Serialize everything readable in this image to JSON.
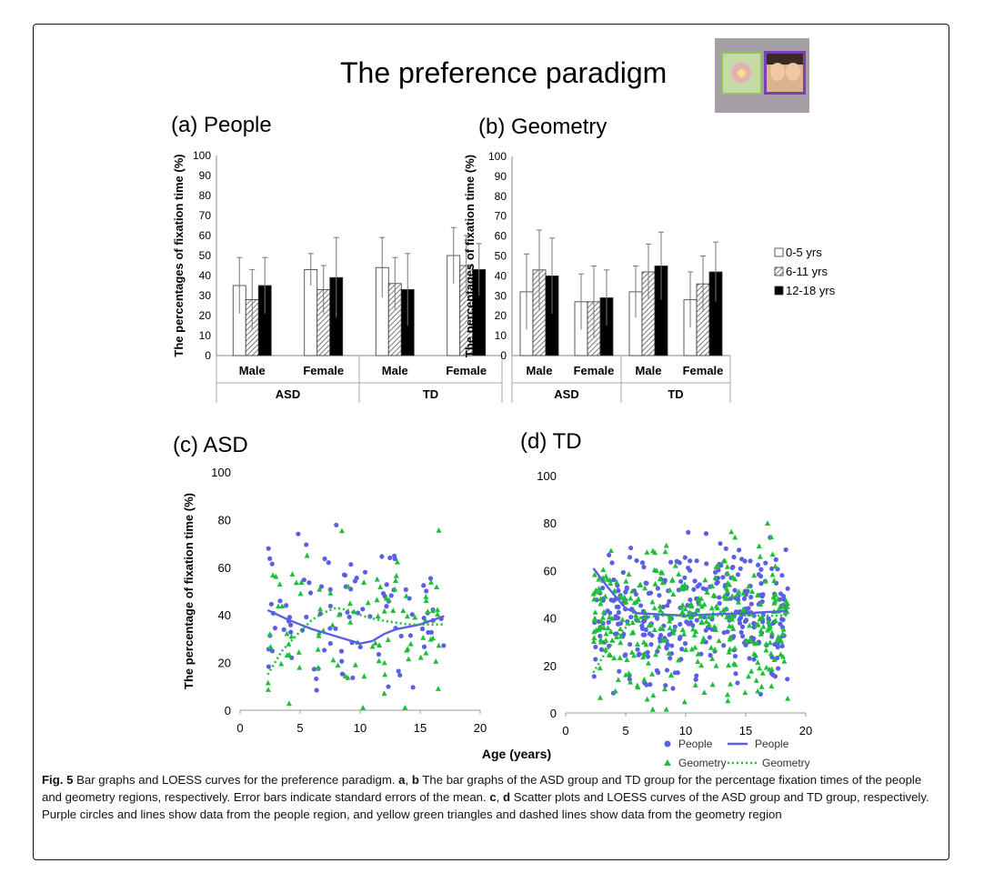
{
  "figure": {
    "main_title": "The preference paradigm",
    "caption": {
      "fig_label": "Fig. 5",
      "lead": " Bar graphs and LOESS curves for the preference paradigm. ",
      "ab_label": "a",
      "ab_sep": ", ",
      "b_label": "b",
      "ab_text": " The bar graphs of the ASD group and TD group for the percentage fixation times of the people and geometry regions, respectively. Error bars indicate standard errors of the mean. ",
      "c_label": "c",
      "cd_sep": ", ",
      "d_label": "d",
      "cd_text": " Scatter plots and LOESS curves of the ASD group and TD group, respectively. Purple circles and lines show data from the people region, and yellow green triangles and dashed lines show data from the geometry region"
    }
  },
  "chart_data": [
    {
      "panel": "(a) People",
      "type": "bar",
      "ylabel": "The percentages of fixation time (%)",
      "ylim": [
        0,
        100
      ],
      "yticks": [
        "0",
        "10",
        "20",
        "30",
        "40",
        "50",
        "60",
        "70",
        "80",
        "90",
        "100"
      ],
      "categories": [
        "Male",
        "Female",
        "Male",
        "Female"
      ],
      "groups": [
        "ASD",
        "TD"
      ],
      "series": [
        {
          "name": "0-5 yrs",
          "values": [
            35,
            43,
            44,
            50
          ],
          "err": [
            14,
            8,
            15,
            14
          ],
          "color": "#ffffff"
        },
        {
          "name": "6-11 yrs",
          "values": [
            28,
            33,
            36,
            45
          ],
          "err": [
            15,
            12,
            13,
            15
          ],
          "color": "hatched"
        },
        {
          "name": "12-18 yrs",
          "values": [
            35,
            39,
            33,
            43
          ],
          "err": [
            14,
            20,
            18,
            13
          ],
          "color": "#000000"
        }
      ]
    },
    {
      "panel": "(b) Geometry",
      "type": "bar",
      "ylabel": "The percentages of fixation time (%)",
      "ylim": [
        0,
        100
      ],
      "yticks": [
        "0",
        "10",
        "20",
        "30",
        "40",
        "50",
        "60",
        "70",
        "80",
        "90",
        "100"
      ],
      "categories": [
        "Male",
        "Female",
        "Male",
        "Female"
      ],
      "groups": [
        "ASD",
        "TD"
      ],
      "legend": [
        "0-5 yrs",
        "6-11 yrs",
        "12-18 yrs"
      ],
      "series": [
        {
          "name": "0-5 yrs",
          "values": [
            32,
            27,
            32,
            28
          ],
          "err": [
            19,
            14,
            13,
            14
          ],
          "color": "#ffffff"
        },
        {
          "name": "6-11 yrs",
          "values": [
            43,
            27,
            42,
            36
          ],
          "err": [
            20,
            18,
            14,
            14
          ],
          "color": "hatched"
        },
        {
          "name": "12-18 yrs",
          "values": [
            40,
            29,
            45,
            42
          ],
          "err": [
            19,
            14,
            17,
            15
          ],
          "color": "#000000"
        }
      ]
    },
    {
      "panel": "(c) ASD",
      "type": "scatter",
      "ylabel": "The percentage of fixation time (%)",
      "xlim": [
        0,
        20
      ],
      "ylim": [
        0,
        100
      ],
      "xticks": [
        "0",
        "5",
        "10",
        "15",
        "20"
      ],
      "yticks": [
        "0",
        "20",
        "40",
        "60",
        "80",
        "100"
      ],
      "people_color": "#5a5fe6",
      "geometry_color": "#1fbf3a",
      "people_loess": [
        [
          2.3,
          42
        ],
        [
          4,
          38
        ],
        [
          6,
          34
        ],
        [
          8,
          31
        ],
        [
          10,
          28
        ],
        [
          11,
          29
        ],
        [
          12,
          32
        ],
        [
          13,
          34
        ],
        [
          15,
          36
        ],
        [
          17,
          39.5
        ]
      ],
      "geometry_loess": [
        [
          2.3,
          15
        ],
        [
          3.5,
          25
        ],
        [
          5,
          33
        ],
        [
          6,
          38
        ],
        [
          7,
          41
        ],
        [
          8,
          43
        ],
        [
          9,
          42
        ],
        [
          10,
          40
        ],
        [
          11,
          38.5
        ],
        [
          12,
          37.5
        ],
        [
          14,
          36
        ],
        [
          17,
          36
        ]
      ]
    },
    {
      "panel": "(d) TD",
      "type": "scatter",
      "xlabel": "Age (years)",
      "xlim": [
        0,
        20
      ],
      "ylim": [
        0,
        100
      ],
      "xticks": [
        "0",
        "5",
        "10",
        "15",
        "20"
      ],
      "yticks": [
        "0",
        "20",
        "40",
        "60",
        "80",
        "100"
      ],
      "legend": [
        "People",
        "People",
        "Geometry",
        "Geometry"
      ],
      "people_color": "#5a5fe6",
      "geometry_color": "#1fbf3a",
      "people_loess": [
        [
          2.3,
          61
        ],
        [
          3.5,
          53
        ],
        [
          5,
          44
        ],
        [
          6,
          42
        ],
        [
          8,
          41.5
        ],
        [
          10,
          41
        ],
        [
          12,
          41.5
        ],
        [
          15,
          42
        ],
        [
          18.5,
          43
        ]
      ],
      "geometry_loess": [
        [
          2.3,
          17
        ],
        [
          3.5,
          27
        ],
        [
          5,
          36
        ],
        [
          6,
          40
        ],
        [
          8,
          41
        ],
        [
          10,
          41
        ],
        [
          13,
          41
        ],
        [
          18.5,
          41
        ]
      ]
    }
  ]
}
